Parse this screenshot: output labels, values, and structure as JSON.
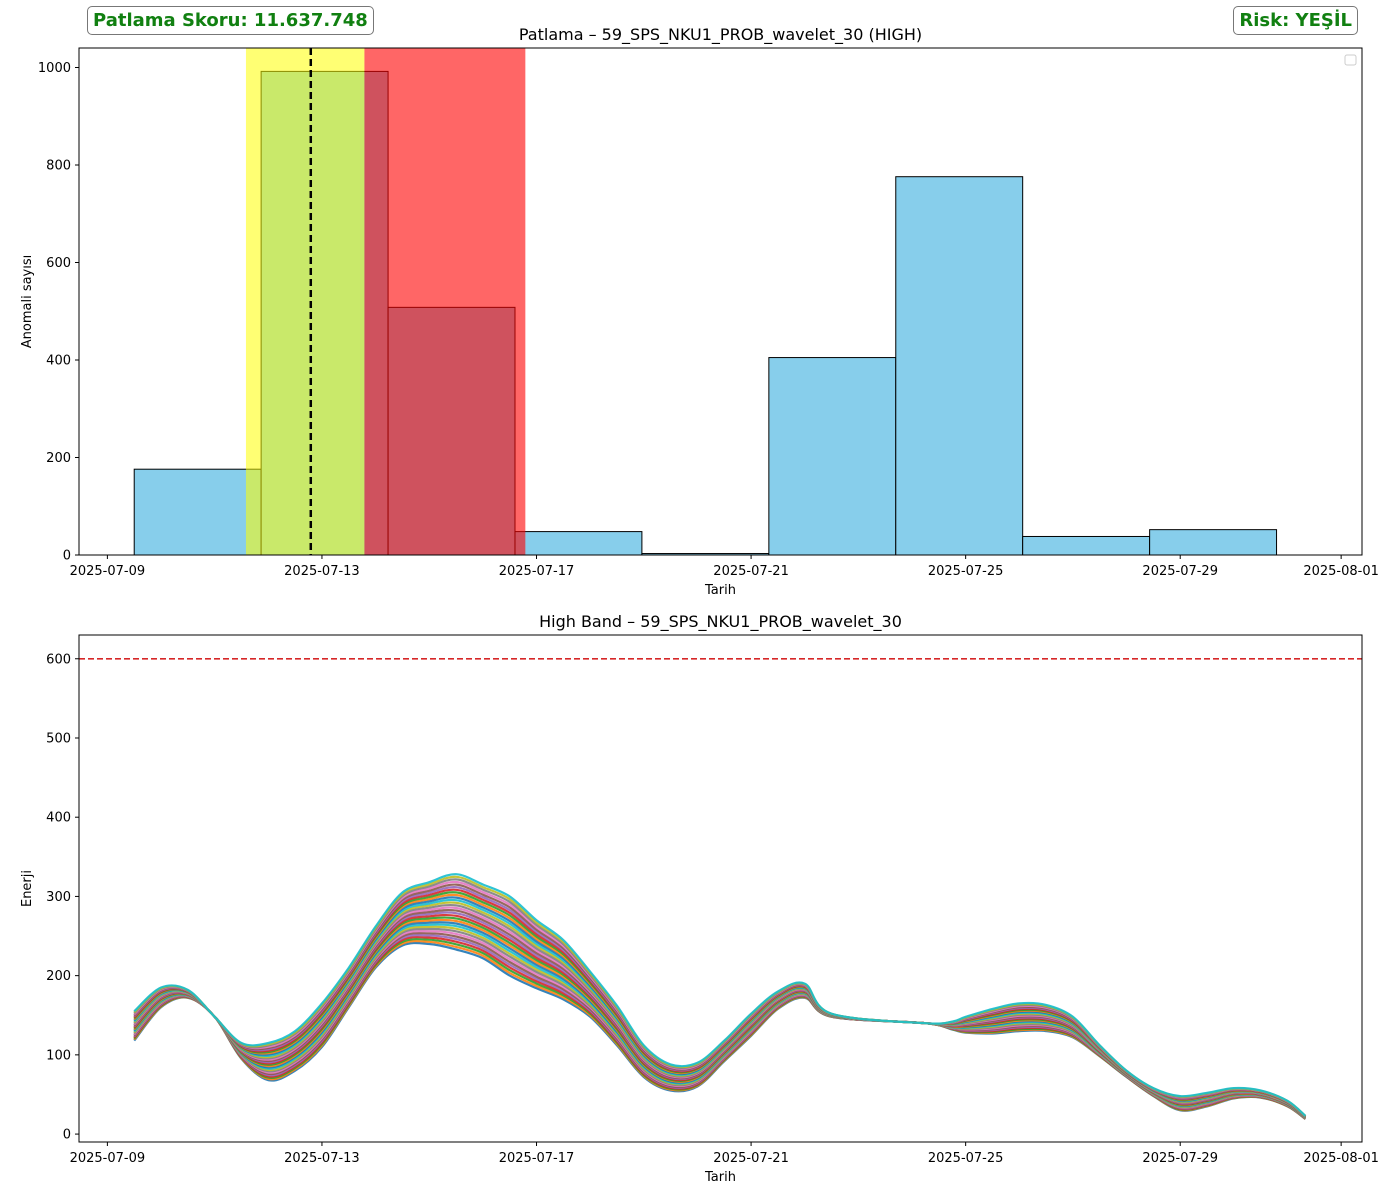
{
  "score_badge": "Patlama Skoru: 11.637.748",
  "risk_badge": "Risk: YEŞİL",
  "colors": {
    "badge_text": "#118011",
    "bar_fill": "#87ceeb",
    "yellow_span": "#ffff00",
    "red_span": "#ff0000",
    "vline": "#000000",
    "threshold": "#d62728"
  },
  "chart_data": [
    {
      "type": "bar",
      "title": "Patlama – 59_SPS_NKU1_PROB_wavelet_30 (HIGH)",
      "xlabel": "Tarih",
      "ylabel": "Anomali sayısı",
      "x_ticks": [
        "2025-07-09",
        "2025-07-13",
        "2025-07-17",
        "2025-07-21",
        "2025-07-25",
        "2025-07-29",
        "2025-08-01"
      ],
      "y_ticks": [
        0,
        200,
        400,
        600,
        800,
        1000
      ],
      "xlim": [
        "2025-07-08T11:18",
        "2025-08-01T09:20"
      ],
      "ylim": [
        0,
        1040
      ],
      "bins": [
        {
          "start": "2025-07-09T12:00",
          "end": "2025-07-11T20:47",
          "value": 176
        },
        {
          "start": "2025-07-11T20:47",
          "end": "2025-07-14T05:35",
          "value": 992
        },
        {
          "start": "2025-07-14T05:35",
          "end": "2025-07-16T14:22",
          "value": 508
        },
        {
          "start": "2025-07-16T14:22",
          "end": "2025-07-18T23:09",
          "value": 48
        },
        {
          "start": "2025-07-18T23:09",
          "end": "2025-07-21T07:57",
          "value": 3
        },
        {
          "start": "2025-07-21T07:57",
          "end": "2025-07-23T16:44",
          "value": 405
        },
        {
          "start": "2025-07-23T16:44",
          "end": "2025-07-26T01:31",
          "value": 776
        },
        {
          "start": "2025-07-26T01:31",
          "end": "2025-07-28T10:19",
          "value": 38
        },
        {
          "start": "2025-07-28T10:19",
          "end": "2025-07-30T19:06",
          "value": 52
        }
      ],
      "highlight_spans": [
        {
          "start": "2025-07-11T14:00",
          "end": "2025-07-13T19:00",
          "color": "yellow"
        },
        {
          "start": "2025-07-13T19:00",
          "end": "2025-07-16T19:00",
          "color": "red"
        }
      ],
      "vline": "2025-07-12T19:00",
      "legend": "top-right",
      "grid": false
    },
    {
      "type": "line",
      "title": "High Band – 59_SPS_NKU1_PROB_wavelet_30",
      "xlabel": "Tarih",
      "ylabel": "Enerji",
      "x_ticks": [
        "2025-07-09",
        "2025-07-13",
        "2025-07-17",
        "2025-07-21",
        "2025-07-25",
        "2025-07-29",
        "2025-08-01"
      ],
      "y_ticks": [
        0,
        100,
        200,
        300,
        400,
        500,
        600
      ],
      "xlim": [
        "2025-07-08T11:18",
        "2025-08-01T09:20"
      ],
      "ylim": [
        -10,
        630
      ],
      "threshold": 600,
      "series_count": 30,
      "band_colors": [
        "#1f77b4",
        "#ff7f0e",
        "#2ca02c",
        "#d62728",
        "#9467bd",
        "#8c564b",
        "#e377c2",
        "#7f7f7f",
        "#bcbd22",
        "#17becf"
      ],
      "series_low": {
        "x": [
          "2025-07-09T12:00",
          "2025-07-10T00:00",
          "2025-07-10T12:00",
          "2025-07-11T00:00",
          "2025-07-11T12:00",
          "2025-07-12T00:00",
          "2025-07-12T12:00",
          "2025-07-13T00:00",
          "2025-07-13T12:00",
          "2025-07-14T00:00",
          "2025-07-14T12:00",
          "2025-07-15T00:00",
          "2025-07-15T12:00",
          "2025-07-16T00:00",
          "2025-07-16T12:00",
          "2025-07-17T00:00",
          "2025-07-17T12:00",
          "2025-07-18T00:00",
          "2025-07-18T12:00",
          "2025-07-19T00:00",
          "2025-07-19T12:00",
          "2025-07-20T00:00",
          "2025-07-20T12:00",
          "2025-07-21T00:00",
          "2025-07-21T12:00",
          "2025-07-22T00:00",
          "2025-07-22T12:00",
          "2025-07-24T06:00",
          "2025-07-24T18:00",
          "2025-07-25T00:00",
          "2025-07-25T12:00",
          "2025-07-26T00:00",
          "2025-07-26T12:00",
          "2025-07-27T00:00",
          "2025-07-27T12:00",
          "2025-07-28T00:00",
          "2025-07-28T12:00",
          "2025-07-29T00:00",
          "2025-07-29T12:00",
          "2025-07-30T00:00",
          "2025-07-30T12:00",
          "2025-07-31T00:00",
          "2025-07-31T08:00"
        ],
        "y": [
          118,
          160,
          172,
          148,
          95,
          68,
          80,
          110,
          160,
          210,
          238,
          240,
          233,
          222,
          200,
          184,
          170,
          148,
          112,
          72,
          55,
          60,
          92,
          124,
          158,
          172,
          148,
          140,
          132,
          128,
          127,
          130,
          130,
          122,
          98,
          72,
          48,
          30,
          35,
          45,
          46,
          35,
          19
        ]
      },
      "series_high": {
        "x": [
          "2025-07-09T12:00",
          "2025-07-10T00:00",
          "2025-07-10T12:00",
          "2025-07-11T00:00",
          "2025-07-11T12:00",
          "2025-07-12T00:00",
          "2025-07-12T12:00",
          "2025-07-13T00:00",
          "2025-07-13T12:00",
          "2025-07-14T00:00",
          "2025-07-14T12:00",
          "2025-07-15T00:00",
          "2025-07-15T12:00",
          "2025-07-16T00:00",
          "2025-07-16T12:00",
          "2025-07-17T00:00",
          "2025-07-17T12:00",
          "2025-07-18T00:00",
          "2025-07-18T12:00",
          "2025-07-19T00:00",
          "2025-07-19T12:00",
          "2025-07-20T00:00",
          "2025-07-20T12:00",
          "2025-07-21T00:00",
          "2025-07-21T12:00",
          "2025-07-22T00:00",
          "2025-07-22T12:00",
          "2025-07-24T06:00",
          "2025-07-24T18:00",
          "2025-07-25T00:00",
          "2025-07-25T12:00",
          "2025-07-26T00:00",
          "2025-07-26T12:00",
          "2025-07-27T00:00",
          "2025-07-27T12:00",
          "2025-07-28T00:00",
          "2025-07-28T12:00",
          "2025-07-29T00:00",
          "2025-07-29T12:00",
          "2025-07-30T00:00",
          "2025-07-30T12:00",
          "2025-07-31T00:00",
          "2025-07-31T08:00"
        ],
        "y": [
          155,
          185,
          182,
          148,
          115,
          115,
          130,
          165,
          210,
          262,
          305,
          318,
          328,
          315,
          300,
          270,
          245,
          205,
          162,
          112,
          88,
          90,
          118,
          152,
          180,
          190,
          152,
          140,
          142,
          148,
          158,
          165,
          163,
          148,
          112,
          80,
          58,
          48,
          52,
          58,
          55,
          42,
          23
        ]
      },
      "grid": false
    }
  ]
}
